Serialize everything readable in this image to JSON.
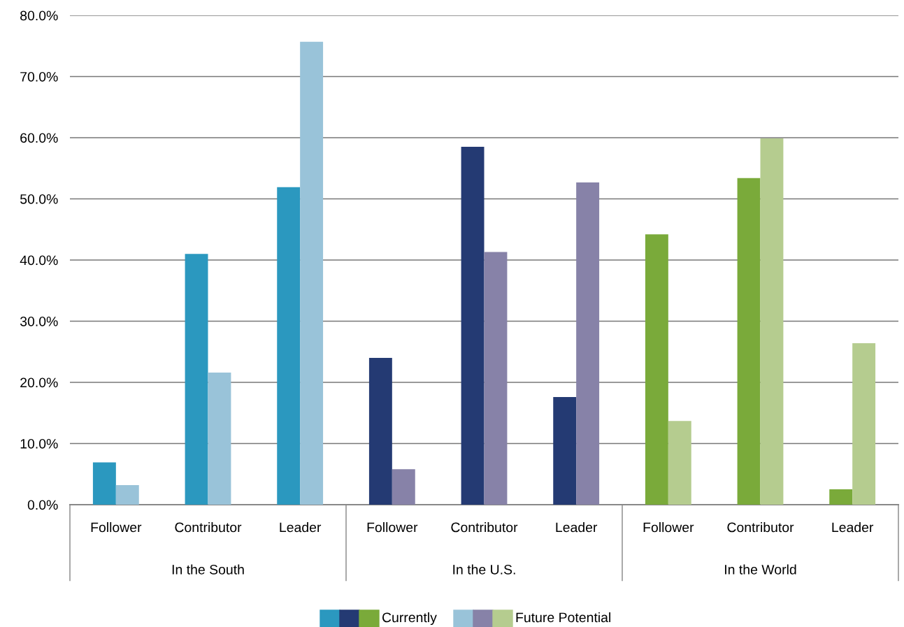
{
  "chart_data": {
    "type": "bar",
    "categories": [
      "Follower",
      "Contributor",
      "Leader",
      "Follower",
      "Contributor",
      "Leader",
      "Follower",
      "Contributor",
      "Leader"
    ],
    "annotations": [
      "In the South",
      "In the U.S.",
      "In the World"
    ],
    "series": [
      {
        "name": "Currently",
        "colors": [
          "#2b98bf",
          "#2b98bf",
          "#2b98bf",
          "#243a73",
          "#243a73",
          "#243a73",
          "#7aaa3a",
          "#7aaa3a",
          "#7aaa3a"
        ],
        "values": [
          6.9,
          41.0,
          51.9,
          24.0,
          58.5,
          17.6,
          44.2,
          53.4,
          2.5
        ]
      },
      {
        "name": "Future Potential",
        "colors": [
          "#99c3d9",
          "#99c3d9",
          "#99c3d9",
          "#8782a8",
          "#8782a8",
          "#8782a8",
          "#b5cc8f",
          "#b5cc8f",
          "#b5cc8f"
        ],
        "values": [
          3.2,
          21.6,
          75.7,
          5.8,
          41.3,
          52.7,
          13.7,
          59.9,
          26.4
        ]
      }
    ],
    "ylim": [
      0,
      80
    ],
    "yticks": [
      {
        "value": 0,
        "label": "0.0%"
      },
      {
        "value": 10,
        "label": "10.0%"
      },
      {
        "value": 20,
        "label": "20.0%"
      },
      {
        "value": 30,
        "label": "30.0%"
      },
      {
        "value": 40,
        "label": "40.0%"
      },
      {
        "value": 50,
        "label": "50.0%"
      },
      {
        "value": 60,
        "label": "60.0%"
      },
      {
        "value": 70,
        "label": "70.0%"
      },
      {
        "value": 80,
        "label": "80.0%"
      }
    ],
    "grid": "y",
    "legend": "bottom"
  }
}
